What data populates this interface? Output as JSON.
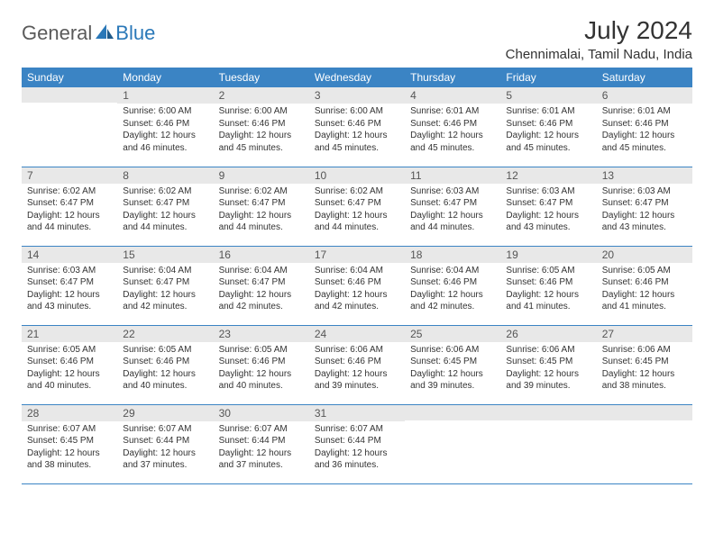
{
  "brand": {
    "part1": "General",
    "part2": "Blue"
  },
  "title": "July 2024",
  "location": "Chennimalai, Tamil Nadu, India",
  "colors": {
    "header_bg": "#3b84c4",
    "header_text": "#ffffff",
    "daynum_bg": "#e8e8e8",
    "border": "#3b84c4",
    "text": "#333333",
    "logo_gray": "#5a5a5a",
    "logo_blue": "#2a78b8"
  },
  "typography": {
    "title_fontsize": 28,
    "location_fontsize": 15,
    "header_fontsize": 12,
    "daynum_fontsize": 12,
    "cell_fontsize": 10
  },
  "weekdays": [
    "Sunday",
    "Monday",
    "Tuesday",
    "Wednesday",
    "Thursday",
    "Friday",
    "Saturday"
  ],
  "weeks": [
    [
      {
        "num": "",
        "lines": []
      },
      {
        "num": "1",
        "lines": [
          "Sunrise: 6:00 AM",
          "Sunset: 6:46 PM",
          "Daylight: 12 hours",
          "and 46 minutes."
        ]
      },
      {
        "num": "2",
        "lines": [
          "Sunrise: 6:00 AM",
          "Sunset: 6:46 PM",
          "Daylight: 12 hours",
          "and 45 minutes."
        ]
      },
      {
        "num": "3",
        "lines": [
          "Sunrise: 6:00 AM",
          "Sunset: 6:46 PM",
          "Daylight: 12 hours",
          "and 45 minutes."
        ]
      },
      {
        "num": "4",
        "lines": [
          "Sunrise: 6:01 AM",
          "Sunset: 6:46 PM",
          "Daylight: 12 hours",
          "and 45 minutes."
        ]
      },
      {
        "num": "5",
        "lines": [
          "Sunrise: 6:01 AM",
          "Sunset: 6:46 PM",
          "Daylight: 12 hours",
          "and 45 minutes."
        ]
      },
      {
        "num": "6",
        "lines": [
          "Sunrise: 6:01 AM",
          "Sunset: 6:46 PM",
          "Daylight: 12 hours",
          "and 45 minutes."
        ]
      }
    ],
    [
      {
        "num": "7",
        "lines": [
          "Sunrise: 6:02 AM",
          "Sunset: 6:47 PM",
          "Daylight: 12 hours",
          "and 44 minutes."
        ]
      },
      {
        "num": "8",
        "lines": [
          "Sunrise: 6:02 AM",
          "Sunset: 6:47 PM",
          "Daylight: 12 hours",
          "and 44 minutes."
        ]
      },
      {
        "num": "9",
        "lines": [
          "Sunrise: 6:02 AM",
          "Sunset: 6:47 PM",
          "Daylight: 12 hours",
          "and 44 minutes."
        ]
      },
      {
        "num": "10",
        "lines": [
          "Sunrise: 6:02 AM",
          "Sunset: 6:47 PM",
          "Daylight: 12 hours",
          "and 44 minutes."
        ]
      },
      {
        "num": "11",
        "lines": [
          "Sunrise: 6:03 AM",
          "Sunset: 6:47 PM",
          "Daylight: 12 hours",
          "and 44 minutes."
        ]
      },
      {
        "num": "12",
        "lines": [
          "Sunrise: 6:03 AM",
          "Sunset: 6:47 PM",
          "Daylight: 12 hours",
          "and 43 minutes."
        ]
      },
      {
        "num": "13",
        "lines": [
          "Sunrise: 6:03 AM",
          "Sunset: 6:47 PM",
          "Daylight: 12 hours",
          "and 43 minutes."
        ]
      }
    ],
    [
      {
        "num": "14",
        "lines": [
          "Sunrise: 6:03 AM",
          "Sunset: 6:47 PM",
          "Daylight: 12 hours",
          "and 43 minutes."
        ]
      },
      {
        "num": "15",
        "lines": [
          "Sunrise: 6:04 AM",
          "Sunset: 6:47 PM",
          "Daylight: 12 hours",
          "and 42 minutes."
        ]
      },
      {
        "num": "16",
        "lines": [
          "Sunrise: 6:04 AM",
          "Sunset: 6:47 PM",
          "Daylight: 12 hours",
          "and 42 minutes."
        ]
      },
      {
        "num": "17",
        "lines": [
          "Sunrise: 6:04 AM",
          "Sunset: 6:46 PM",
          "Daylight: 12 hours",
          "and 42 minutes."
        ]
      },
      {
        "num": "18",
        "lines": [
          "Sunrise: 6:04 AM",
          "Sunset: 6:46 PM",
          "Daylight: 12 hours",
          "and 42 minutes."
        ]
      },
      {
        "num": "19",
        "lines": [
          "Sunrise: 6:05 AM",
          "Sunset: 6:46 PM",
          "Daylight: 12 hours",
          "and 41 minutes."
        ]
      },
      {
        "num": "20",
        "lines": [
          "Sunrise: 6:05 AM",
          "Sunset: 6:46 PM",
          "Daylight: 12 hours",
          "and 41 minutes."
        ]
      }
    ],
    [
      {
        "num": "21",
        "lines": [
          "Sunrise: 6:05 AM",
          "Sunset: 6:46 PM",
          "Daylight: 12 hours",
          "and 40 minutes."
        ]
      },
      {
        "num": "22",
        "lines": [
          "Sunrise: 6:05 AM",
          "Sunset: 6:46 PM",
          "Daylight: 12 hours",
          "and 40 minutes."
        ]
      },
      {
        "num": "23",
        "lines": [
          "Sunrise: 6:05 AM",
          "Sunset: 6:46 PM",
          "Daylight: 12 hours",
          "and 40 minutes."
        ]
      },
      {
        "num": "24",
        "lines": [
          "Sunrise: 6:06 AM",
          "Sunset: 6:46 PM",
          "Daylight: 12 hours",
          "and 39 minutes."
        ]
      },
      {
        "num": "25",
        "lines": [
          "Sunrise: 6:06 AM",
          "Sunset: 6:45 PM",
          "Daylight: 12 hours",
          "and 39 minutes."
        ]
      },
      {
        "num": "26",
        "lines": [
          "Sunrise: 6:06 AM",
          "Sunset: 6:45 PM",
          "Daylight: 12 hours",
          "and 39 minutes."
        ]
      },
      {
        "num": "27",
        "lines": [
          "Sunrise: 6:06 AM",
          "Sunset: 6:45 PM",
          "Daylight: 12 hours",
          "and 38 minutes."
        ]
      }
    ],
    [
      {
        "num": "28",
        "lines": [
          "Sunrise: 6:07 AM",
          "Sunset: 6:45 PM",
          "Daylight: 12 hours",
          "and 38 minutes."
        ]
      },
      {
        "num": "29",
        "lines": [
          "Sunrise: 6:07 AM",
          "Sunset: 6:44 PM",
          "Daylight: 12 hours",
          "and 37 minutes."
        ]
      },
      {
        "num": "30",
        "lines": [
          "Sunrise: 6:07 AM",
          "Sunset: 6:44 PM",
          "Daylight: 12 hours",
          "and 37 minutes."
        ]
      },
      {
        "num": "31",
        "lines": [
          "Sunrise: 6:07 AM",
          "Sunset: 6:44 PM",
          "Daylight: 12 hours",
          "and 36 minutes."
        ]
      },
      {
        "num": "",
        "lines": []
      },
      {
        "num": "",
        "lines": []
      },
      {
        "num": "",
        "lines": []
      }
    ]
  ]
}
